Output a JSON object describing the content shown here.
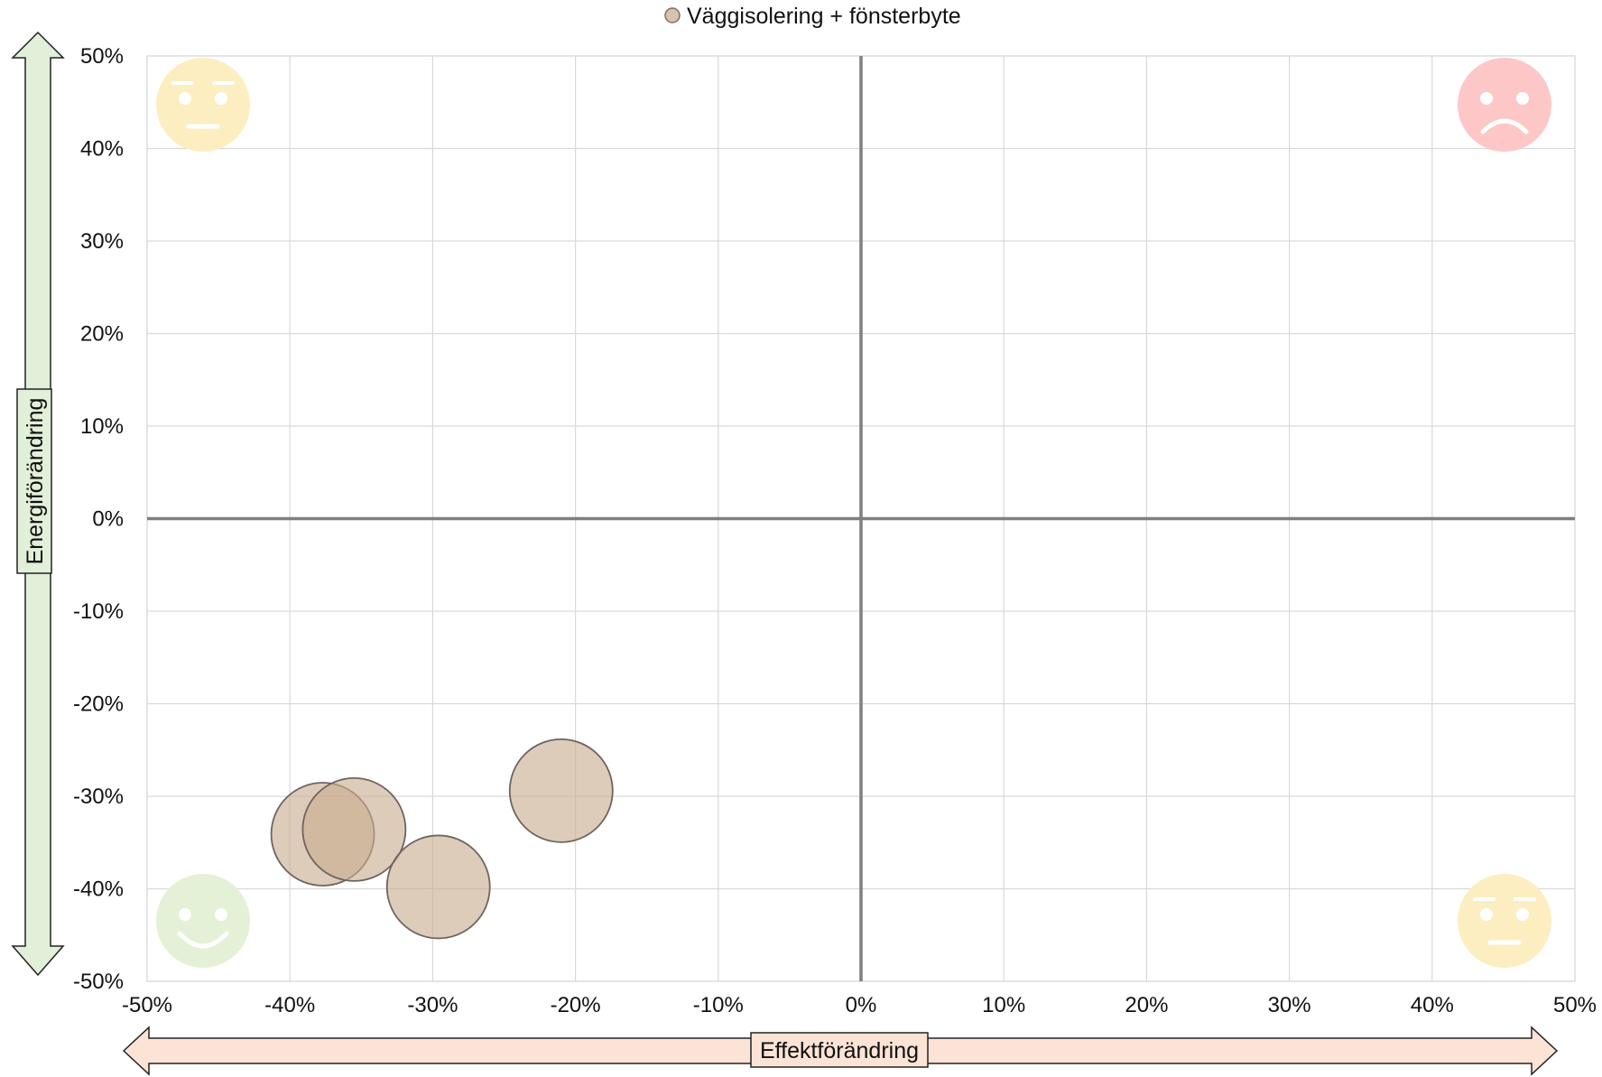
{
  "chart_data": {
    "type": "scatter",
    "subtype": "bubble",
    "title": "",
    "legend": {
      "position": "top",
      "entries": [
        "Väggisolering + fönsterbyte"
      ]
    },
    "xlabel": "Effektförändring",
    "ylabel": "Energiförändring",
    "xlim": [
      -0.5,
      0.5
    ],
    "ylim": [
      -0.5,
      0.5
    ],
    "x_ticks": [
      "-50%",
      "-40%",
      "-30%",
      "-20%",
      "-10%",
      "0%",
      "10%",
      "20%",
      "30%",
      "40%",
      "50%"
    ],
    "y_ticks": [
      "50%",
      "40%",
      "30%",
      "20%",
      "10%",
      "0%",
      "-10%",
      "-20%",
      "-30%",
      "-40%",
      "-50%"
    ],
    "grid": true,
    "series": [
      {
        "name": "Väggisolering + fönsterbyte",
        "color": "#c9ac8f",
        "points": [
          {
            "x": -0.377,
            "y": -0.341
          },
          {
            "x": -0.355,
            "y": -0.336
          },
          {
            "x": -0.296,
            "y": -0.398
          },
          {
            "x": -0.21,
            "y": -0.294
          }
        ]
      }
    ],
    "quadrant_icons": [
      {
        "quadrant": "top-left",
        "icon": "neutral-face-icon",
        "color": "#fdeec1"
      },
      {
        "quadrant": "top-right",
        "icon": "sad-face-icon",
        "color": "#fdc7c7"
      },
      {
        "quadrant": "bottom-left",
        "icon": "happy-face-icon",
        "color": "#e4f1d6"
      },
      {
        "quadrant": "bottom-right",
        "icon": "neutral-face-icon",
        "color": "#fdeec1"
      }
    ],
    "x_arrow_color": "#fbe3d5",
    "y_arrow_color": "#e2efd9"
  }
}
